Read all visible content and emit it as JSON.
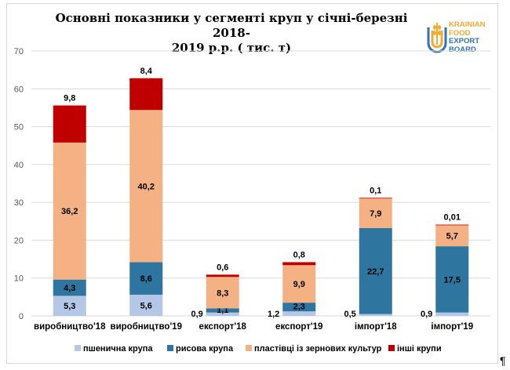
{
  "chart_data": {
    "type": "stacked-bar",
    "title": "Основні показники у сегменті круп у січні-березні 2018-2019 р.р. ( тис. т)",
    "title_lines": [
      "Основні показники у сегменті круп у січні-березні 2018-",
      "2019 р.р. ( тис. т)"
    ],
    "categories": [
      "виробництво'18",
      "виробництво'19",
      "експорт'18",
      "експорт'19",
      "імпорт'18",
      "імпорт'19"
    ],
    "series": [
      {
        "name": "пшенична крупа",
        "color": "#b4c7e7",
        "values": [
          5.3,
          5.6,
          0.9,
          1.2,
          0.5,
          0.9
        ],
        "labels": [
          "5,3",
          "5,6",
          "0,9",
          "1,2",
          "0,5",
          "0,9"
        ]
      },
      {
        "name": "рисова крупа",
        "color": "#2e75a0",
        "values": [
          4.3,
          8.6,
          1.1,
          2.3,
          22.7,
          17.5
        ],
        "labels": [
          "4,3",
          "8,6",
          "1,1",
          "2,3",
          "22,7",
          "17,5"
        ]
      },
      {
        "name": "пластівці із зернових культур",
        "color": "#f4b183",
        "values": [
          36.2,
          40.2,
          8.3,
          9.9,
          7.9,
          5.7
        ],
        "labels": [
          "36,2",
          "40,2",
          "8,3",
          "9,9",
          "7,9",
          "5,7"
        ]
      },
      {
        "name": "інші крупи",
        "color": "#c00000",
        "values": [
          9.8,
          8.4,
          0.6,
          0.8,
          0.1,
          0.01
        ],
        "labels": [
          "9,8",
          "8,4",
          "0,6",
          "0,8",
          "0,1",
          "0,01"
        ]
      }
    ],
    "ylim": [
      0,
      70
    ],
    "yticks": [
      "0",
      "10",
      "20",
      "30",
      "40",
      "50",
      "60",
      "70"
    ],
    "grid": true,
    "legend": "bottom",
    "xlabel": "",
    "ylabel": ""
  },
  "logo": {
    "lines": [
      "KRAINIAN",
      "FOOD",
      "EXPORT",
      "BOARD"
    ]
  },
  "pilcrow": "¶"
}
